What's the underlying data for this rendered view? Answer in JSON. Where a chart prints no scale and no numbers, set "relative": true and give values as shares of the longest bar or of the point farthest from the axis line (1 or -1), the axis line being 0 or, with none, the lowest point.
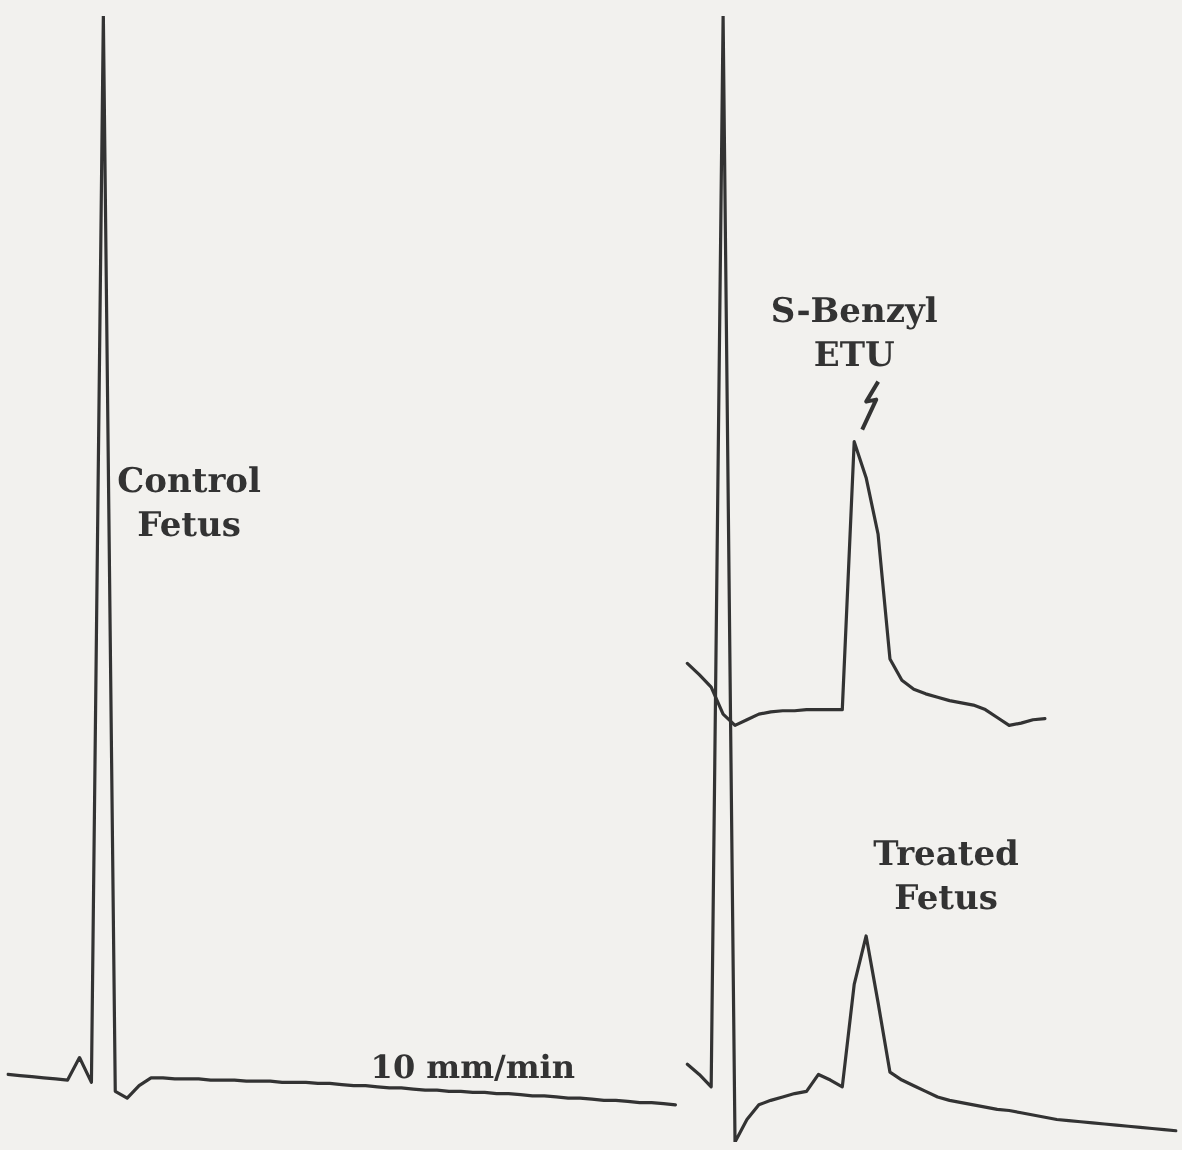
{
  "chart_data": {
    "type": "line",
    "relative": true,
    "annotations": [
      "10 mm/min"
    ],
    "categories": [
      null,
      null,
      null,
      null,
      null,
      null,
      null,
      null,
      null,
      null,
      null,
      null,
      null,
      null,
      null,
      null,
      null,
      null,
      null,
      null,
      null,
      null,
      null,
      null,
      null,
      null,
      null,
      null,
      null,
      null,
      null,
      null,
      null,
      null,
      null,
      null,
      null,
      null,
      null,
      null,
      null,
      null,
      null,
      null,
      null,
      null,
      null,
      null,
      null,
      null,
      null,
      null,
      null,
      null,
      null,
      null,
      null,
      null,
      null,
      null,
      null,
      null,
      null,
      null,
      null,
      null,
      null,
      null,
      null,
      null,
      null,
      null,
      null,
      null,
      null,
      null,
      null,
      null,
      null,
      null,
      null,
      null,
      null,
      null,
      null,
      null,
      null,
      null,
      null,
      null,
      null,
      null,
      null,
      null,
      null,
      null,
      null,
      null,
      null
    ],
    "series": [
      {
        "name": "Control Fetus",
        "color": "#333333",
        "values": [
          0.06,
          0.059,
          0.058,
          0.057,
          0.056,
          0.055,
          0.075,
          0.053,
          1.0,
          0.045,
          0.039,
          0.05,
          0.057,
          0.057,
          0.056,
          0.056,
          0.056,
          0.055,
          0.055,
          0.055,
          0.054,
          0.054,
          0.054,
          0.053,
          0.053,
          0.053,
          0.052,
          0.052,
          0.051,
          0.05,
          0.05,
          0.049,
          0.048,
          0.048,
          0.047,
          0.046,
          0.046,
          0.045,
          0.045,
          0.044,
          0.044,
          0.043,
          0.043,
          0.042,
          0.041,
          0.041,
          0.04,
          0.039,
          0.039,
          0.038,
          0.037,
          0.037,
          0.036,
          0.035,
          0.035,
          0.034,
          0.033,
          null,
          null,
          null,
          null,
          null,
          null,
          null,
          null,
          null,
          null,
          null,
          null,
          null,
          null,
          null,
          null,
          null,
          null,
          null,
          null,
          null,
          null,
          null,
          null,
          null,
          null,
          null,
          null,
          null,
          null,
          null,
          null,
          null,
          null,
          null,
          null,
          null,
          null,
          null,
          null,
          null,
          null
        ]
      },
      {
        "name": "S-Benzyl ETU",
        "color": "#333333",
        "values": [
          null,
          null,
          null,
          null,
          null,
          null,
          null,
          null,
          null,
          null,
          null,
          null,
          null,
          null,
          null,
          null,
          null,
          null,
          null,
          null,
          null,
          null,
          null,
          null,
          null,
          null,
          null,
          null,
          null,
          null,
          null,
          null,
          null,
          null,
          null,
          null,
          null,
          null,
          null,
          null,
          null,
          null,
          null,
          null,
          null,
          null,
          null,
          null,
          null,
          null,
          null,
          null,
          null,
          null,
          null,
          null,
          null,
          0.425,
          0.415,
          0.404,
          0.38,
          0.37,
          0.375,
          0.38,
          0.382,
          0.383,
          0.383,
          0.384,
          0.384,
          0.384,
          0.384,
          0.622,
          0.59,
          0.54,
          0.429,
          0.41,
          0.402,
          0.398,
          0.395,
          0.392,
          0.39,
          0.388,
          0.384,
          0.377,
          0.37,
          0.372,
          0.375,
          0.376,
          null,
          null,
          null,
          null,
          null,
          null,
          null,
          null,
          null,
          null,
          null
        ]
      },
      {
        "name": "Treated Fetus",
        "color": "#333333",
        "values": [
          null,
          null,
          null,
          null,
          null,
          null,
          null,
          null,
          null,
          null,
          null,
          null,
          null,
          null,
          null,
          null,
          null,
          null,
          null,
          null,
          null,
          null,
          null,
          null,
          null,
          null,
          null,
          null,
          null,
          null,
          null,
          null,
          null,
          null,
          null,
          null,
          null,
          null,
          null,
          null,
          null,
          null,
          null,
          null,
          null,
          null,
          null,
          null,
          null,
          null,
          null,
          null,
          null,
          null,
          null,
          null,
          null,
          0.069,
          0.06,
          0.049,
          1.0,
          0.0,
          0.02,
          0.033,
          0.037,
          0.04,
          0.043,
          0.045,
          0.06,
          0.055,
          0.049,
          0.14,
          0.183,
          0.124,
          0.062,
          0.055,
          0.05,
          0.045,
          0.04,
          0.037,
          0.035,
          0.033,
          0.031,
          0.029,
          0.028,
          0.026,
          0.024,
          0.022,
          0.02,
          0.019,
          0.018,
          0.017,
          0.016,
          0.015,
          0.014,
          0.013,
          0.012,
          0.011,
          0.01
        ]
      }
    ],
    "marker": "none",
    "line_style": "solid",
    "legend": false
  }
}
